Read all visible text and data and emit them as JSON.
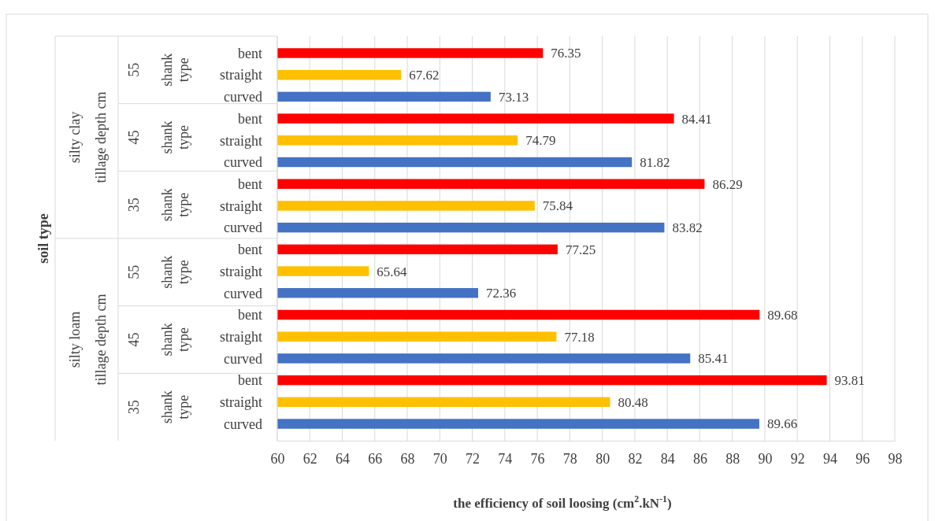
{
  "chart_data": {
    "type": "bar",
    "orientation": "horizontal",
    "xlabel": "the efficiency of soil loosing (cm$^{2}$.kN$^{-1}$)",
    "categories": [
      "bent",
      "straight",
      "curved",
      "bent",
      "straight",
      "curved",
      "bent",
      "straight",
      "curved",
      "bent",
      "straight",
      "curved",
      "bent",
      "straight",
      "curved",
      "bent",
      "straight",
      "curved"
    ],
    "values": [
      76.35,
      67.62,
      73.13,
      84.41,
      74.79,
      81.82,
      86.29,
      75.84,
      83.82,
      77.25,
      65.64,
      72.36,
      89.68,
      77.18,
      85.41,
      93.81,
      80.48,
      89.66
    ],
    "colors": [
      "#ff0000",
      "#ffc000",
      "#4472c4",
      "#ff0000",
      "#ffc000",
      "#4472c4",
      "#ff0000",
      "#ffc000",
      "#4472c4",
      "#ff0000",
      "#ffc000",
      "#4472c4",
      "#ff0000",
      "#ffc000",
      "#4472c4",
      "#ff0000",
      "#ffc000",
      "#4472c4"
    ],
    "annotations": [
      "silty clay",
      "silty loam",
      "tillage depth cm",
      "tillage depth cm",
      "55",
      "45",
      "35",
      "55",
      "45",
      "35",
      "shank type",
      "shank type",
      "shank type",
      "shank type",
      "shank type",
      "shank type",
      "soil type"
    ],
    "xlim": [
      60,
      98
    ],
    "xticks": [
      60,
      62,
      64,
      66,
      68,
      70,
      72,
      74,
      76,
      78,
      80,
      82,
      84,
      86,
      88,
      90,
      92,
      94,
      96,
      98
    ],
    "grid": "x",
    "data_labels": true
  }
}
